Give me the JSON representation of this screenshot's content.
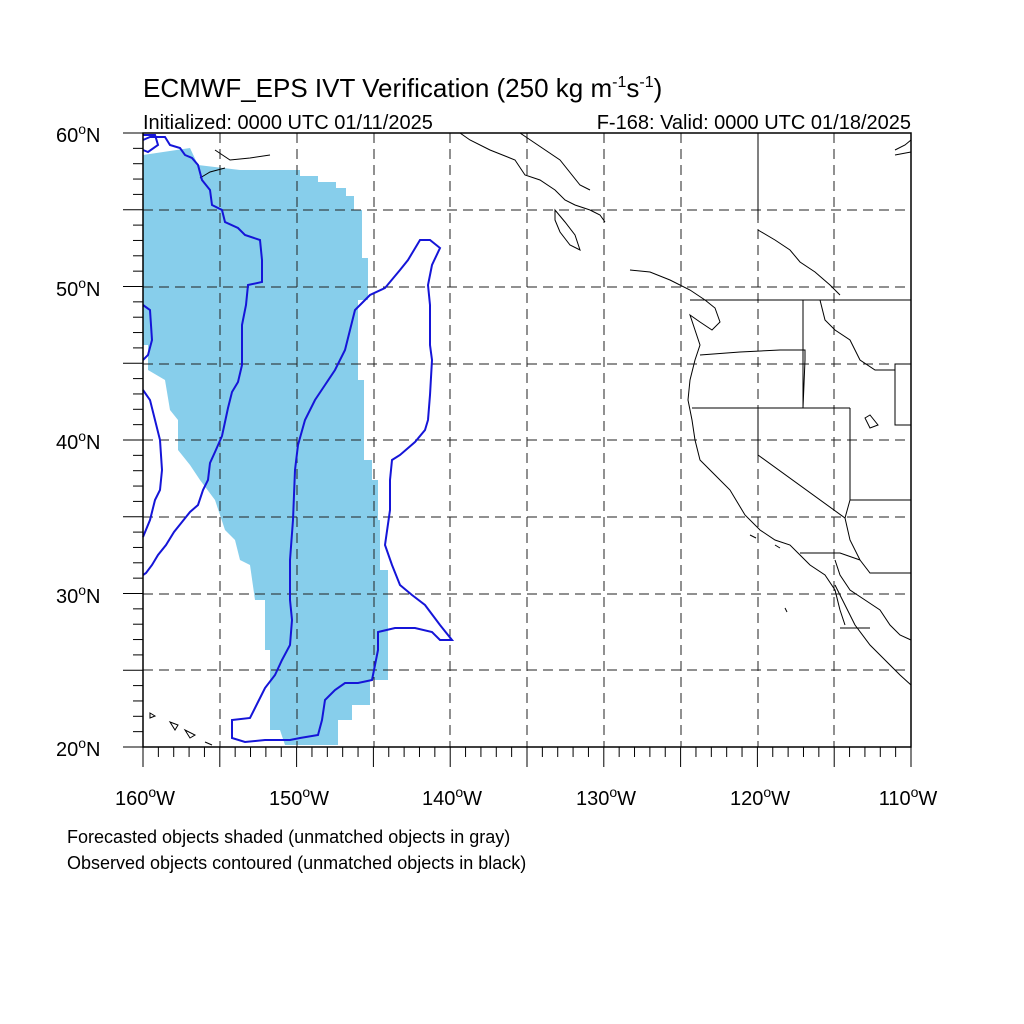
{
  "title": "ECMWF_EPS IVT Verification (250 kg m",
  "title_exp1": "-1",
  "title_mid": "s",
  "title_exp2": "-1",
  "title_end": ")",
  "initialized": "Initialized: 0000 UTC 01/11/2025",
  "valid": "F-168: Valid: 0000 UTC 01/18/2025",
  "lat_labels": [
    "60",
    "50",
    "40",
    "30",
    "20"
  ],
  "lat_suffix": "N",
  "lon_labels": [
    "160",
    "150",
    "140",
    "130",
    "120",
    "110"
  ],
  "lon_suffix": "W",
  "degree": "o",
  "notes": {
    "line1": "Forecasted objects shaded (unmatched objects in gray)",
    "line2": "Observed objects contoured (unmatched objects in black)"
  },
  "colors": {
    "forecast_fill": "#87ceeb",
    "observed_contour": "#1515d8",
    "coastline": "#000000"
  },
  "map_extent": {
    "lon_min": -160,
    "lon_max": -110,
    "lat_min": 20,
    "lat_max": 60
  }
}
